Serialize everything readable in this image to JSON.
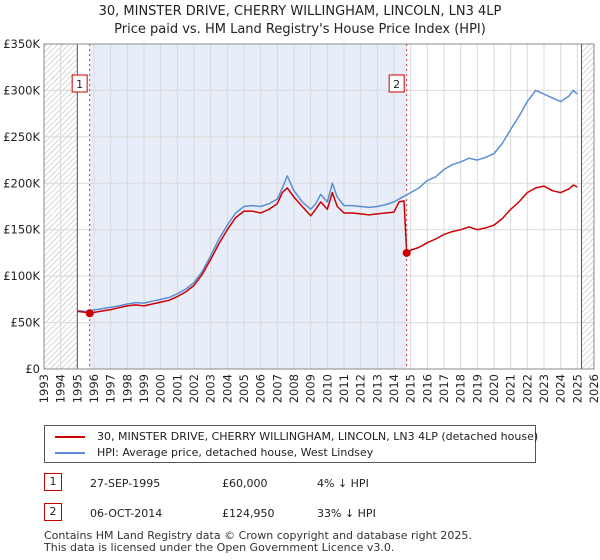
{
  "chart_data": {
    "type": "line",
    "title": "30, MINSTER DRIVE, CHERRY WILLINGHAM, LINCOLN, LN3 4LP",
    "subtitle": "Price paid vs. HM Land Registry's House Price Index (HPI)",
    "xlabel": "",
    "ylabel": "",
    "xlim": [
      1993.0,
      2026.0
    ],
    "ylim": [
      0,
      350000
    ],
    "y_ticks": [
      {
        "value": 0,
        "label": "£0"
      },
      {
        "value": 50000,
        "label": "£50K"
      },
      {
        "value": 100000,
        "label": "£100K"
      },
      {
        "value": 150000,
        "label": "£150K"
      },
      {
        "value": 200000,
        "label": "£200K"
      },
      {
        "value": 250000,
        "label": "£250K"
      },
      {
        "value": 300000,
        "label": "£300K"
      },
      {
        "value": 350000,
        "label": "£350K"
      }
    ],
    "x_ticks": [
      "1993",
      "1994",
      "1995",
      "1996",
      "1997",
      "1998",
      "1999",
      "2000",
      "2001",
      "2002",
      "2003",
      "2004",
      "2005",
      "2006",
      "2007",
      "2008",
      "2009",
      "2010",
      "2011",
      "2012",
      "2013",
      "2014",
      "2015",
      "2016",
      "2017",
      "2018",
      "2019",
      "2020",
      "2021",
      "2022",
      "2023",
      "2024",
      "2025",
      "2026"
    ],
    "grid": true,
    "data_window": [
      1995.0,
      2025.25
    ],
    "colors": {
      "property": "#cc0000",
      "hpi": "#5b8dd6",
      "shade": "#e8eef9",
      "hatch": "#aaaaaa",
      "marker": "#cc0000"
    },
    "series": [
      {
        "name": "30, MINSTER DRIVE, CHERRY WILLINGHAM, LINCOLN, LN3 4LP (detached house)",
        "x": [
          1995.0,
          1995.5,
          1995.74,
          1996.0,
          1996.5,
          1997.0,
          1997.5,
          1998.0,
          1998.5,
          1999.0,
          1999.5,
          2000.0,
          2000.5,
          2001.0,
          2001.5,
          2002.0,
          2002.5,
          2003.0,
          2003.5,
          2004.0,
          2004.5,
          2005.0,
          2005.5,
          2006.0,
          2006.5,
          2007.0,
          2007.3,
          2007.6,
          2008.0,
          2008.5,
          2009.0,
          2009.3,
          2009.6,
          2010.0,
          2010.3,
          2010.6,
          2011.0,
          2011.5,
          2012.0,
          2012.5,
          2013.0,
          2013.5,
          2014.0,
          2014.3,
          2014.6,
          2014.76,
          2015.0,
          2015.5,
          2016.0,
          2016.5,
          2017.0,
          2017.5,
          2018.0,
          2018.5,
          2019.0,
          2019.5,
          2020.0,
          2020.5,
          2021.0,
          2021.5,
          2022.0,
          2022.5,
          2023.0,
          2023.5,
          2024.0,
          2024.5,
          2024.75,
          2025.0
        ],
        "values": [
          62000,
          61000,
          60000,
          61000,
          62500,
          64000,
          66000,
          68000,
          69000,
          68000,
          70000,
          72000,
          74000,
          78000,
          83000,
          90000,
          102000,
          118000,
          135000,
          150000,
          163000,
          170000,
          170000,
          168000,
          172000,
          178000,
          190000,
          195000,
          185000,
          175000,
          165000,
          172000,
          180000,
          172000,
          190000,
          175000,
          168000,
          168000,
          167000,
          166000,
          167000,
          168000,
          169000,
          180000,
          181000,
          124950,
          128000,
          131000,
          136000,
          140000,
          145000,
          148000,
          150000,
          153000,
          150000,
          152000,
          155000,
          162000,
          172000,
          180000,
          190000,
          195000,
          197000,
          192000,
          190000,
          194000,
          198000,
          196000
        ]
      },
      {
        "name": "HPI: Average price, detached house, West Lindsey",
        "x": [
          1995.0,
          1995.5,
          1996.0,
          1996.5,
          1997.0,
          1997.5,
          1998.0,
          1998.5,
          1999.0,
          1999.5,
          2000.0,
          2000.5,
          2001.0,
          2001.5,
          2002.0,
          2002.5,
          2003.0,
          2003.5,
          2004.0,
          2004.5,
          2005.0,
          2005.5,
          2006.0,
          2006.5,
          2007.0,
          2007.3,
          2007.6,
          2008.0,
          2008.5,
          2009.0,
          2009.3,
          2009.6,
          2010.0,
          2010.3,
          2010.6,
          2011.0,
          2011.5,
          2012.0,
          2012.5,
          2013.0,
          2013.5,
          2014.0,
          2014.5,
          2015.0,
          2015.5,
          2016.0,
          2016.5,
          2017.0,
          2017.5,
          2018.0,
          2018.5,
          2019.0,
          2019.5,
          2020.0,
          2020.5,
          2021.0,
          2021.5,
          2022.0,
          2022.5,
          2023.0,
          2023.5,
          2024.0,
          2024.5,
          2024.75,
          2025.0
        ],
        "values": [
          63000,
          62000,
          63500,
          65000,
          66500,
          68000,
          70000,
          71500,
          71000,
          73000,
          75000,
          77000,
          81000,
          86000,
          93000,
          105000,
          122000,
          140000,
          155000,
          168000,
          175000,
          176000,
          175000,
          178000,
          183000,
          195000,
          208000,
          192000,
          180000,
          172000,
          178000,
          188000,
          180000,
          200000,
          185000,
          176000,
          176000,
          175000,
          174000,
          175000,
          177000,
          180000,
          185000,
          190000,
          195000,
          203000,
          207000,
          215000,
          220000,
          223000,
          227000,
          225000,
          228000,
          232000,
          243000,
          258000,
          272000,
          288000,
          300000,
          296000,
          292000,
          288000,
          294000,
          300000,
          296000
        ]
      }
    ],
    "sales": [
      {
        "label": "1",
        "x": 1995.74,
        "price": 60000
      },
      {
        "label": "2",
        "x": 2014.76,
        "price": 124950
      }
    ]
  },
  "legend": {
    "property_label": "30, MINSTER DRIVE, CHERRY WILLINGHAM, LINCOLN, LN3 4LP (detached house)",
    "hpi_label": "HPI: Average price, detached house, West Lindsey"
  },
  "transactions": [
    {
      "num": "1",
      "date": "27-SEP-1995",
      "price": "£60,000",
      "hpi": "4% ↓ HPI"
    },
    {
      "num": "2",
      "date": "06-OCT-2014",
      "price": "£124,950",
      "hpi": "33% ↓ HPI"
    }
  ],
  "footer": {
    "line1": "Contains HM Land Registry data © Crown copyright and database right 2025.",
    "line2": "This data is licensed under the Open Government Licence v3.0."
  }
}
